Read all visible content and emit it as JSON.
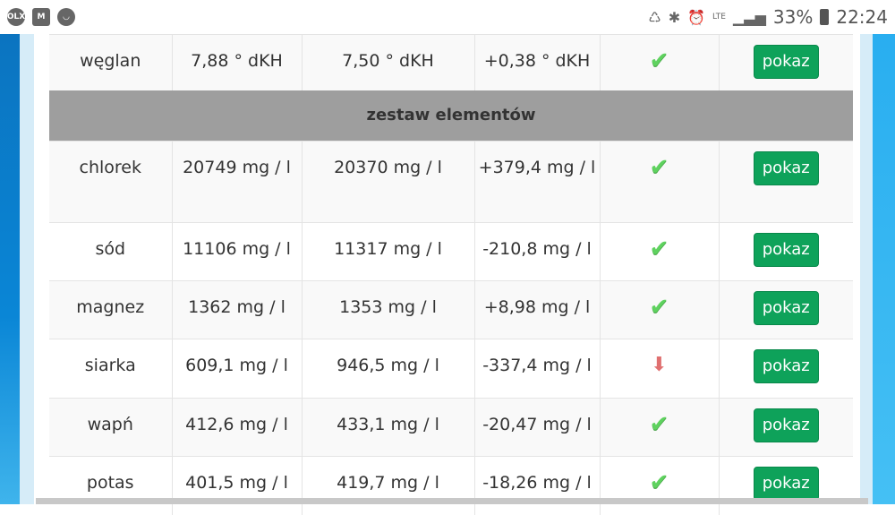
{
  "status_bar": {
    "left_icons": [
      "olx-icon",
      "gmail-icon",
      "smile-icon"
    ],
    "right_icons": [
      "data-saver-icon",
      "bluetooth-icon",
      "alarm-icon",
      "lte-wifi-icon",
      "signal-icon"
    ],
    "battery": "33%",
    "time": "22:24",
    "olx": "OLX"
  },
  "table": {
    "rows": [
      {
        "name": "węglan",
        "measured": "7,88 ° dKH",
        "target": "7,50 ° dKH",
        "diff": "+0,38 ° dKH",
        "status": "ok",
        "button": "pokaz"
      }
    ],
    "section": "zestaw elementów",
    "section_rows": [
      {
        "name": "chlorek",
        "measured": "20749 mg / l",
        "target": "20370 mg / l",
        "diff": "+379,4 mg / l",
        "status": "ok",
        "button": "pokaz"
      },
      {
        "name": "sód",
        "measured": "11106 mg / l",
        "target": "11317 mg / l",
        "diff": "-210,8 mg / l",
        "status": "ok",
        "button": "pokaz"
      },
      {
        "name": "magnez",
        "measured": "1362 mg / l",
        "target": "1353 mg / l",
        "diff": "+8,98 mg / l",
        "status": "ok",
        "button": "pokaz"
      },
      {
        "name": "siarka",
        "measured": "609,1 mg / l",
        "target": "946,5 mg / l",
        "diff": "-337,4 mg / l",
        "status": "low",
        "button": "pokaz"
      },
      {
        "name": "wapń",
        "measured": "412,6 mg / l",
        "target": "433,1 mg / l",
        "diff": "-20,47 mg / l",
        "status": "ok",
        "button": "pokaz"
      },
      {
        "name": "potas",
        "measured": "401,5 mg / l",
        "target": "419,7 mg / l",
        "diff": "-18,26 mg / l",
        "status": "ok",
        "button": "pokaz"
      }
    ]
  },
  "colors": {
    "button": "#0ea25a",
    "ok": "#5fd25f",
    "low": "#e07070",
    "section": "#9e9e9e"
  }
}
